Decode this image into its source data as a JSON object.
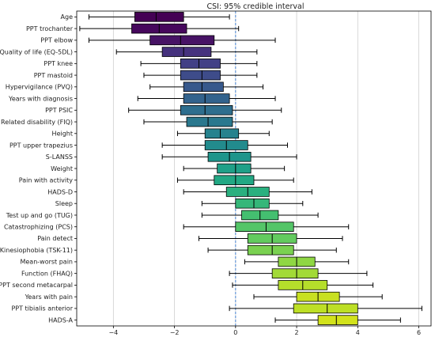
{
  "chart_data": {
    "type": "boxplot",
    "title": "CSI: 95% credible interval",
    "xlabel": "",
    "ylabel": "",
    "xlim": [
      -5.2,
      6.4
    ],
    "xticks": [
      -4,
      -2,
      0,
      2,
      4,
      6
    ],
    "xtick_labels": [
      "−4",
      "−2",
      "0",
      "2",
      "4",
      "6"
    ],
    "reference_line_x": 0,
    "grid": "vertical",
    "colormap": "viridis",
    "categories": [
      {
        "label": "Age",
        "color": "#440154",
        "whisker_low": -4.8,
        "q1": -3.3,
        "median": -2.6,
        "q3": -1.7,
        "whisker_high": -0.2
      },
      {
        "label": "PPT trochanter",
        "color": "#46085c",
        "whisker_low": -5.1,
        "q1": -3.4,
        "median": -2.5,
        "q3": -1.6,
        "whisker_high": 0.1
      },
      {
        "label": "PPT elbow",
        "color": "#471365",
        "whisker_low": -4.8,
        "q1": -2.8,
        "median": -1.8,
        "q3": -0.7,
        "whisker_high": 1.3
      },
      {
        "label": "Quality of life (EQ-5DL)",
        "color": "#46327e",
        "whisker_low": -3.9,
        "q1": -2.4,
        "median": -1.7,
        "q3": -0.8,
        "whisker_high": 0.7
      },
      {
        "label": "PPT knee",
        "color": "#424086",
        "whisker_low": -3.1,
        "q1": -1.8,
        "median": -1.2,
        "q3": -0.5,
        "whisker_high": 0.7
      },
      {
        "label": "PPT mastoid",
        "color": "#3e4c8a",
        "whisker_low": -3.0,
        "q1": -1.8,
        "median": -1.1,
        "q3": -0.5,
        "whisker_high": 0.7
      },
      {
        "label": "Hypervigilance (PVQ)",
        "color": "#38598c",
        "whisker_low": -2.8,
        "q1": -1.7,
        "median": -1.1,
        "q3": -0.4,
        "whisker_high": 0.9
      },
      {
        "label": "Years with diagnosis",
        "color": "#33638d",
        "whisker_low": -3.2,
        "q1": -1.7,
        "median": -1.0,
        "q3": -0.2,
        "whisker_high": 1.3
      },
      {
        "label": "PPT PSIC",
        "color": "#2e6e8e",
        "whisker_low": -3.5,
        "q1": -1.8,
        "median": -1.0,
        "q3": -0.1,
        "whisker_high": 1.5
      },
      {
        "label": "Related disability (FIQ)",
        "color": "#2a788e",
        "whisker_low": -3.0,
        "q1": -1.6,
        "median": -0.9,
        "q3": -0.1,
        "whisker_high": 1.2
      },
      {
        "label": "Height",
        "color": "#26828e",
        "whisker_low": -1.9,
        "q1": -1.0,
        "median": -0.5,
        "q3": 0.1,
        "whisker_high": 1.1
      },
      {
        "label": "PPT upper trapezius",
        "color": "#228b8d",
        "whisker_low": -2.4,
        "q1": -1.0,
        "median": -0.3,
        "q3": 0.4,
        "whisker_high": 1.7
      },
      {
        "label": "S-LANSS",
        "color": "#1f958b",
        "whisker_low": -2.4,
        "q1": -0.9,
        "median": -0.2,
        "q3": 0.5,
        "whisker_high": 2.0
      },
      {
        "label": "Weight",
        "color": "#1fa088",
        "whisker_low": -1.7,
        "q1": -0.6,
        "median": 0.0,
        "q3": 0.5,
        "whisker_high": 1.6
      },
      {
        "label": "Pain with activity",
        "color": "#22a884",
        "whisker_low": -1.9,
        "q1": -0.7,
        "median": 0.0,
        "q3": 0.6,
        "whisker_high": 1.9
      },
      {
        "label": "HADS-D",
        "color": "#2ab07f",
        "whisker_low": -1.7,
        "q1": -0.3,
        "median": 0.4,
        "q3": 1.1,
        "whisker_high": 2.5
      },
      {
        "label": "Sleep",
        "color": "#35b779",
        "whisker_low": -1.1,
        "q1": 0.0,
        "median": 0.6,
        "q3": 1.1,
        "whisker_high": 2.2
      },
      {
        "label": "Test up and go (TUG)",
        "color": "#44bf70",
        "whisker_low": -1.1,
        "q1": 0.2,
        "median": 0.8,
        "q3": 1.4,
        "whisker_high": 2.7
      },
      {
        "label": "Catastrophizing (PCS)",
        "color": "#54c568",
        "whisker_low": -1.7,
        "q1": 0.0,
        "median": 1.0,
        "q3": 1.9,
        "whisker_high": 3.7
      },
      {
        "label": "Pain detect",
        "color": "#63cb5f",
        "whisker_low": -1.2,
        "q1": 0.4,
        "median": 1.2,
        "q3": 2.0,
        "whisker_high": 3.5
      },
      {
        "label": "Kinesiophobia (TSK-11)",
        "color": "#7ad151",
        "whisker_low": -0.9,
        "q1": 0.4,
        "median": 1.2,
        "q3": 1.9,
        "whisker_high": 3.3
      },
      {
        "label": "Mean-worst pain",
        "color": "#8fd744",
        "whisker_low": 0.3,
        "q1": 1.4,
        "median": 2.0,
        "q3": 2.6,
        "whisker_high": 3.7
      },
      {
        "label": "Function (FHAQ)",
        "color": "#a2da37",
        "whisker_low": -0.2,
        "q1": 1.2,
        "median": 2.0,
        "q3": 2.7,
        "whisker_high": 4.3
      },
      {
        "label": "PPT second metacarpal",
        "color": "#b5de2b",
        "whisker_low": -0.1,
        "q1": 1.4,
        "median": 2.2,
        "q3": 3.0,
        "whisker_high": 4.5
      },
      {
        "label": "Years with pain",
        "color": "#c8e020",
        "whisker_low": 0.6,
        "q1": 2.0,
        "median": 2.7,
        "q3": 3.4,
        "whisker_high": 4.8
      },
      {
        "label": "PPT tibialis anterior",
        "color": "#bddf26",
        "whisker_low": -0.2,
        "q1": 1.9,
        "median": 3.0,
        "q3": 4.0,
        "whisker_high": 6.1
      },
      {
        "label": "HADS-A",
        "color": "#d2e21b",
        "whisker_low": 1.3,
        "q1": 2.7,
        "median": 3.3,
        "q3": 4.0,
        "whisker_high": 5.4
      }
    ]
  }
}
